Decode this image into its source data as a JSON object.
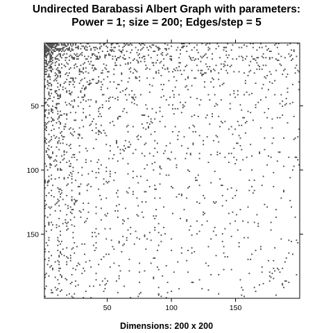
{
  "chart_data": {
    "type": "heatmap",
    "title_lines": [
      "Undirected Barabassi Albert Graph with parameters:",
      "Power = 1; size = 200; Edges/step = 5"
    ],
    "xlabel": "Dimensions: 200 x 200",
    "ylabel": "",
    "rows": 200,
    "cols": 200,
    "xlim": [
      1,
      200
    ],
    "ylim": [
      1,
      200
    ],
    "y_axis_direction": "top-to-bottom",
    "x_ticks": [
      50,
      100,
      150
    ],
    "y_ticks": [
      50,
      100,
      150
    ],
    "grid": false,
    "legend": "none",
    "matrix_kind": "sparse adjacency matrix, symmetric, dense toward low indices",
    "generator": {
      "power": 1,
      "size": 200,
      "edges_per_step": 5
    },
    "fill_color": "#4a4a4a",
    "background_color": "#ffffff"
  }
}
